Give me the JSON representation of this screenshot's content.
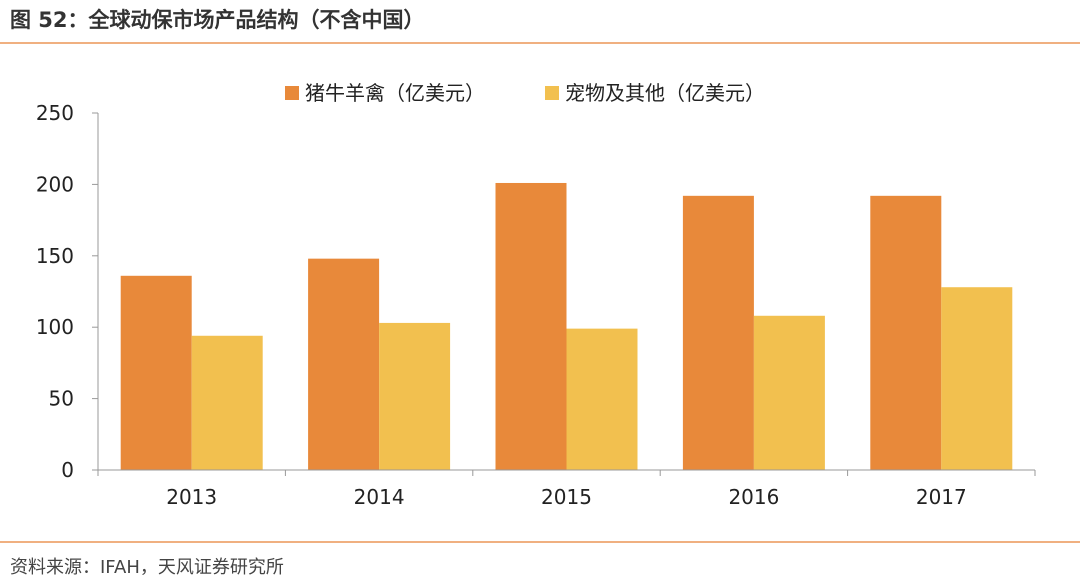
{
  "header": {
    "title": "图 52：全球动保市场产品结构（不含中国）"
  },
  "footer": {
    "source": "资料来源：IFAH，天风证券研究所"
  },
  "colors": {
    "series1": "#E8893A",
    "series2": "#F2C04F",
    "rule": "#F0B080"
  },
  "chart_data": {
    "type": "bar",
    "categories": [
      "2013",
      "2014",
      "2015",
      "2016",
      "2017"
    ],
    "series": [
      {
        "name": "猪牛羊禽（亿美元）",
        "values": [
          136,
          148,
          201,
          192,
          192
        ]
      },
      {
        "name": "宠物及其他（亿美元）",
        "values": [
          94,
          103,
          99,
          108,
          128
        ]
      }
    ],
    "ylim": [
      0,
      250
    ],
    "yticks": [
      "0",
      "50",
      "100",
      "150",
      "200",
      "250"
    ],
    "legend_position": "top-center",
    "grid": false
  }
}
